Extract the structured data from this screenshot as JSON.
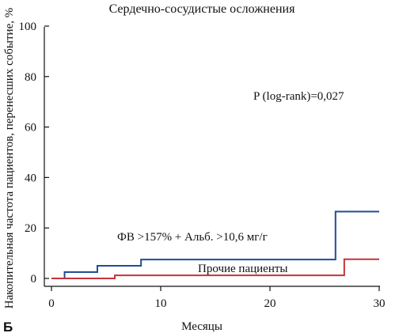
{
  "panel_label": "Б",
  "chart_data": {
    "type": "line",
    "title": "Сердечно-сосудистые осложнения",
    "xlabel": "Месяцы",
    "ylabel": "Накопительная частота пациентов, перенесших событие, %",
    "xlim": [
      0,
      30
    ],
    "ylim": [
      0,
      100
    ],
    "x_ticks": [
      0,
      10,
      20,
      30
    ],
    "y_ticks": [
      0,
      20,
      40,
      60,
      80,
      100
    ],
    "step": true,
    "grid": false,
    "annotation": "P (log-rank)=0,027",
    "series": [
      {
        "name": "ФВ >157% + Альб. >10,6 мг/г",
        "color": "#1f4e96",
        "x": [
          0,
          1.2,
          4.2,
          8.2,
          26,
          30
        ],
        "y": [
          0,
          2.5,
          5,
          7.5,
          26.5,
          26.5
        ]
      },
      {
        "name": "Прочие пациенты",
        "color": "#c8323a",
        "x": [
          0,
          5.8,
          26.8,
          30
        ],
        "y": [
          0,
          1.2,
          7.6,
          7.6
        ]
      }
    ]
  }
}
